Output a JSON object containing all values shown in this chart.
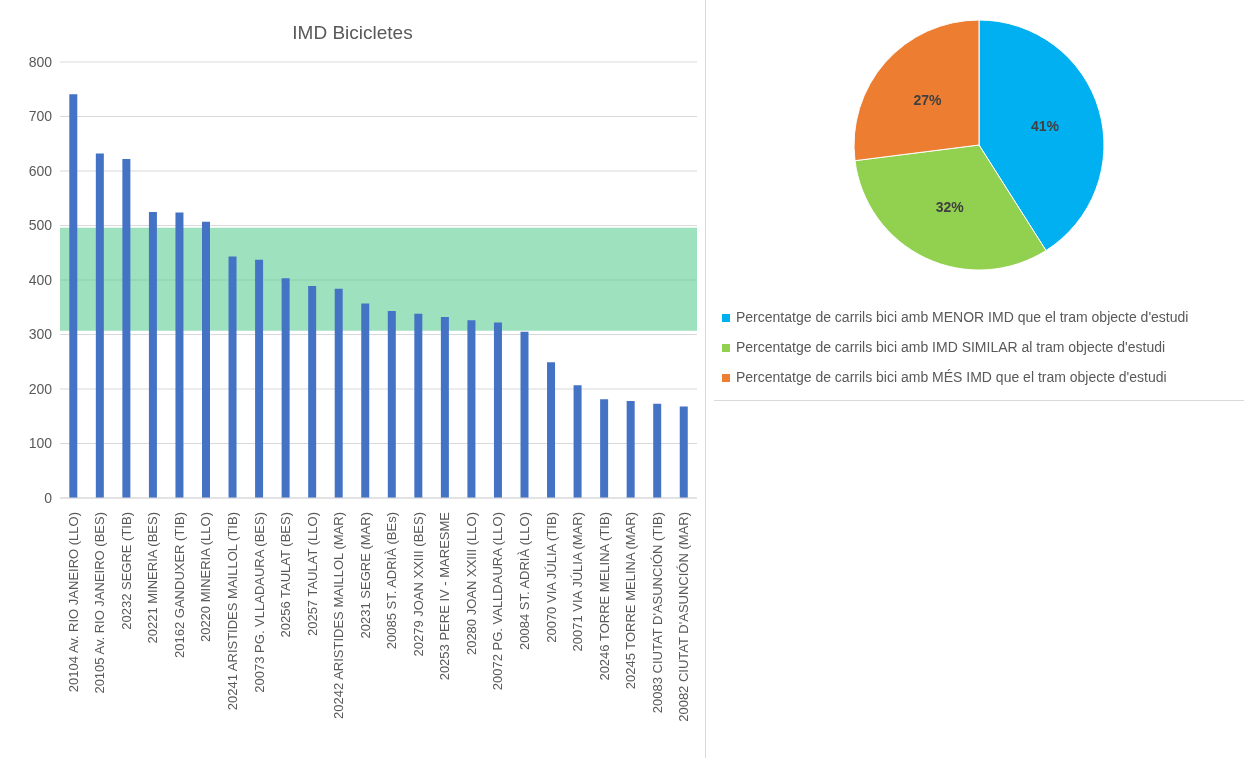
{
  "chart_data": [
    {
      "type": "bar",
      "title": "IMD Bicicletes",
      "categories": [
        "20104 Av. RIO JANEIRO (LLO)",
        "20105 Av. RIO JANEIRO (BES)",
        "20232 SEGRE (TIB)",
        "20221 MINERIA (BES)",
        "20162 GANDUXER (TIB)",
        "20220 MINERIA (LLO)",
        "20241 ARISTIDES MAILLOL (TIB)",
        "20073 PG. VLLADAURA (BES)",
        "20256 TAULAT (BES)",
        "20257 TAULAT (LLO)",
        "20242 ARISTIDES MAILLOL (MAR)",
        "20231 SEGRE (MAR)",
        "20085 ST. ADRIÀ (BEs)",
        "20279 JOAN XXIII (BES)",
        "20253 PERE IV - MARESME",
        "20280 JOAN XXIII (LLO)",
        "20072 PG. VALLDAURA (LLO)",
        "20084 ST. ADRIÀ (LLO)",
        "20070 VIA JÚLIA (TIB)",
        "20071 VIA JÚLIA (MAR)",
        "20246 TORRE MELINA (TIB)",
        "20245 TORRE MELINA (MAR)",
        "20083 CIUTAT D'ASUNCIÓN (TIB)",
        "20082 CIUTAT D'ASUNCIÓN (MAR)"
      ],
      "values": [
        741,
        632,
        622,
        525,
        524,
        507,
        443,
        437,
        403,
        389,
        384,
        357,
        343,
        338,
        332,
        326,
        322,
        305,
        249,
        207,
        181,
        178,
        173,
        168
      ],
      "color": "#4472c4",
      "ylim": [
        0,
        800
      ],
      "yticks": [
        0,
        100,
        200,
        300,
        400,
        500,
        600,
        700,
        800
      ],
      "grid": "y",
      "bands": [
        {
          "axis": "y",
          "from": 307,
          "to": 496,
          "color": "#3dc47e"
        }
      ]
    },
    {
      "type": "pie",
      "categories": [
        "Percentatge de carrils bici amb MENOR IMD que el tram objecte d'estudi",
        "Percentatge de carrils bici amb IMD SIMILAR al tram objecte d'estudi",
        "Percentatge de carrils bici amb MÉS IMD que el tram objecte d'estudi"
      ],
      "values": [
        41,
        32,
        27
      ],
      "colors": [
        "#00b0f0",
        "#92d050",
        "#ed7d31"
      ],
      "value_labels": [
        "41%",
        "32%",
        "27%"
      ],
      "legend": "bottom"
    }
  ]
}
